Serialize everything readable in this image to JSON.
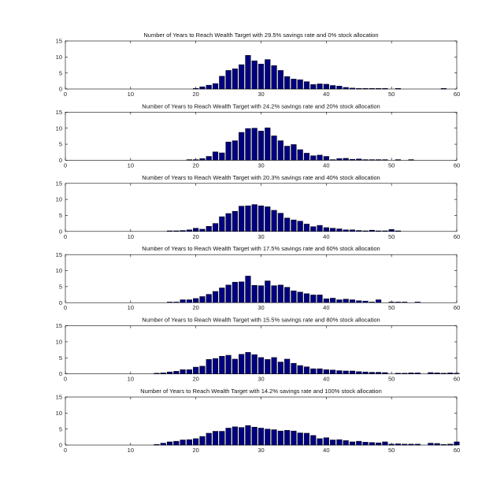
{
  "chart_data": [
    {
      "type": "bar",
      "title": "Number of Years to Reach Wealth Target with 29.5% savings rate and 0% stock allocation",
      "xlabel": "",
      "ylabel": "",
      "xlim": [
        0,
        60
      ],
      "ylim": [
        0,
        15
      ],
      "xticks": [
        "0",
        "10",
        "20",
        "30",
        "40",
        "50",
        "60"
      ],
      "yticks": [
        "0",
        "5",
        "10",
        "15"
      ],
      "bar_color": "#000080",
      "x": [
        20,
        21,
        22,
        23,
        24,
        25,
        26,
        27,
        28,
        29,
        30,
        31,
        32,
        33,
        34,
        35,
        36,
        37,
        38,
        39,
        40,
        41,
        42,
        43,
        44,
        45,
        46,
        47,
        48,
        49,
        51,
        58
      ],
      "values": [
        0.1,
        0.7,
        1.2,
        1.7,
        4.0,
        5.8,
        6.3,
        7.6,
        10.5,
        8.8,
        7.8,
        9.2,
        7.3,
        5.8,
        3.9,
        3.1,
        2.9,
        2.3,
        1.4,
        1.6,
        1.5,
        1.1,
        0.9,
        0.5,
        0.3,
        0.2,
        0.2,
        0.1,
        0.2,
        0.1,
        0.1,
        0.1
      ]
    },
    {
      "type": "bar",
      "title": "Number of Years to Reach Wealth Target with 24.2% savings rate and 20% stock allocation",
      "xlabel": "",
      "ylabel": "",
      "xlim": [
        0,
        60
      ],
      "ylim": [
        0,
        15
      ],
      "xticks": [
        "0",
        "10",
        "20",
        "30",
        "40",
        "50",
        "60"
      ],
      "yticks": [
        "0",
        "5",
        "10",
        "15"
      ],
      "bar_color": "#000080",
      "x": [
        19,
        20,
        21,
        22,
        23,
        24,
        25,
        26,
        27,
        28,
        29,
        30,
        31,
        32,
        33,
        34,
        35,
        36,
        37,
        38,
        39,
        40,
        41,
        42,
        43,
        44,
        45,
        46,
        47,
        48,
        49,
        51,
        53
      ],
      "values": [
        0.1,
        0.2,
        0.5,
        1.2,
        2.6,
        2.3,
        5.7,
        6.1,
        8.7,
        9.9,
        10.0,
        9.1,
        10.1,
        7.6,
        6.1,
        4.4,
        4.9,
        3.3,
        2.2,
        1.4,
        1.6,
        1.2,
        0.2,
        0.5,
        0.6,
        0.3,
        0.4,
        0.2,
        0.2,
        0.2,
        0.1,
        0.2,
        0.1
      ]
    },
    {
      "type": "bar",
      "title": "Number of Years to Reach Wealth Target with 20.3% savings rate and 40% stock allocation",
      "xlabel": "",
      "ylabel": "",
      "xlim": [
        0,
        60
      ],
      "ylim": [
        0,
        15
      ],
      "xticks": [
        "0",
        "10",
        "20",
        "30",
        "40",
        "50",
        "60"
      ],
      "yticks": [
        "0",
        "5",
        "10",
        "15"
      ],
      "bar_color": "#000080",
      "x": [
        16,
        17,
        18,
        19,
        20,
        21,
        22,
        23,
        24,
        25,
        26,
        27,
        28,
        29,
        30,
        31,
        32,
        33,
        34,
        35,
        36,
        37,
        38,
        39,
        40,
        41,
        42,
        43,
        44,
        45,
        46,
        47,
        48,
        49,
        50,
        51
      ],
      "values": [
        0.1,
        0.2,
        0.3,
        0.5,
        1.0,
        0.7,
        1.6,
        2.5,
        4.6,
        5.6,
        6.3,
        7.9,
        8.0,
        8.4,
        8.0,
        7.7,
        6.6,
        5.7,
        4.2,
        3.6,
        3.2,
        2.3,
        1.5,
        1.9,
        1.2,
        1.0,
        0.8,
        0.5,
        0.5,
        0.3,
        0.2,
        0.4,
        0.1,
        0.1,
        0.6,
        0.2
      ]
    },
    {
      "type": "bar",
      "title": "Number of Years to Reach Wealth Target with 17.5% savings rate and 60% stock allocation",
      "xlabel": "",
      "ylabel": "",
      "xlim": [
        0,
        60
      ],
      "ylim": [
        0,
        15
      ],
      "xticks": [
        "0",
        "10",
        "20",
        "30",
        "40",
        "50",
        "60"
      ],
      "yticks": [
        "0",
        "5",
        "10",
        "15"
      ],
      "bar_color": "#000080",
      "x": [
        16,
        17,
        18,
        19,
        20,
        21,
        22,
        23,
        24,
        25,
        26,
        27,
        28,
        29,
        30,
        31,
        32,
        33,
        34,
        35,
        36,
        37,
        38,
        39,
        40,
        41,
        42,
        43,
        44,
        45,
        46,
        47,
        48,
        50,
        51,
        52,
        54
      ],
      "values": [
        0.1,
        0.1,
        0.9,
        0.9,
        1.3,
        1.9,
        2.6,
        3.5,
        4.6,
        5.5,
        6.4,
        6.5,
        8.3,
        5.4,
        5.3,
        6.8,
        5.3,
        5.5,
        4.8,
        3.7,
        3.3,
        2.8,
        2.4,
        2.4,
        1.2,
        1.4,
        0.9,
        1.1,
        0.9,
        0.6,
        0.5,
        0.2,
        0.9,
        0.1,
        0.2,
        0.1,
        0.2
      ]
    },
    {
      "type": "bar",
      "title": "Number of Years to Reach Wealth Target with 15.5% savings rate and 80% stock allocation",
      "xlabel": "",
      "ylabel": "",
      "xlim": [
        0,
        60
      ],
      "ylim": [
        0,
        15
      ],
      "xticks": [
        "0",
        "10",
        "20",
        "30",
        "40",
        "50",
        "60"
      ],
      "yticks": [
        "0",
        "5",
        "10",
        "15"
      ],
      "bar_color": "#000080",
      "x": [
        14,
        15,
        16,
        17,
        18,
        19,
        20,
        21,
        22,
        23,
        24,
        25,
        26,
        27,
        28,
        29,
        30,
        31,
        32,
        33,
        34,
        35,
        36,
        37,
        38,
        39,
        40,
        41,
        42,
        43,
        44,
        45,
        46,
        47,
        48,
        49,
        51,
        52,
        53,
        54,
        56,
        57,
        58,
        59,
        60
      ],
      "values": [
        0.1,
        0.3,
        0.6,
        0.8,
        1.3,
        1.3,
        2.1,
        2.4,
        4.5,
        4.8,
        5.5,
        5.8,
        4.6,
        6.1,
        6.7,
        6.0,
        5.1,
        4.5,
        5.1,
        3.7,
        4.6,
        3.3,
        2.6,
        2.2,
        1.6,
        1.6,
        1.3,
        1.2,
        1.0,
        0.9,
        0.9,
        0.7,
        0.6,
        0.5,
        0.5,
        0.4,
        0.2,
        0.2,
        0.3,
        0.3,
        0.4,
        0.3,
        0.1,
        0.3,
        0.2
      ]
    },
    {
      "type": "bar",
      "title": "Number of Years to Reach Wealth Target with 14.2% savings rate and 100% stock allocation",
      "xlabel": "",
      "ylabel": "",
      "xlim": [
        0,
        60
      ],
      "ylim": [
        0,
        15
      ],
      "xticks": [
        "0",
        "10",
        "20",
        "30",
        "40",
        "50",
        "60"
      ],
      "yticks": [
        "0",
        "5",
        "10",
        "15"
      ],
      "bar_color": "#000080",
      "x": [
        14,
        15,
        16,
        17,
        18,
        19,
        20,
        21,
        22,
        23,
        24,
        25,
        26,
        27,
        28,
        29,
        30,
        31,
        32,
        33,
        34,
        35,
        36,
        37,
        38,
        39,
        40,
        41,
        42,
        43,
        44,
        45,
        46,
        47,
        48,
        49,
        50,
        51,
        52,
        53,
        54,
        56,
        57,
        58,
        59,
        60
      ],
      "values": [
        0.1,
        0.6,
        1.0,
        1.2,
        1.6,
        1.7,
        2.0,
        2.7,
        3.7,
        4.3,
        4.3,
        5.3,
        5.7,
        5.5,
        6.1,
        5.6,
        5.3,
        5.0,
        4.8,
        4.4,
        4.6,
        4.4,
        3.8,
        3.7,
        3.0,
        2.0,
        2.3,
        1.6,
        1.7,
        1.4,
        1.0,
        1.2,
        0.9,
        0.8,
        0.7,
        1.0,
        0.3,
        0.4,
        0.3,
        0.3,
        0.3,
        0.6,
        0.5,
        0.2,
        0.3,
        1.0
      ]
    }
  ]
}
